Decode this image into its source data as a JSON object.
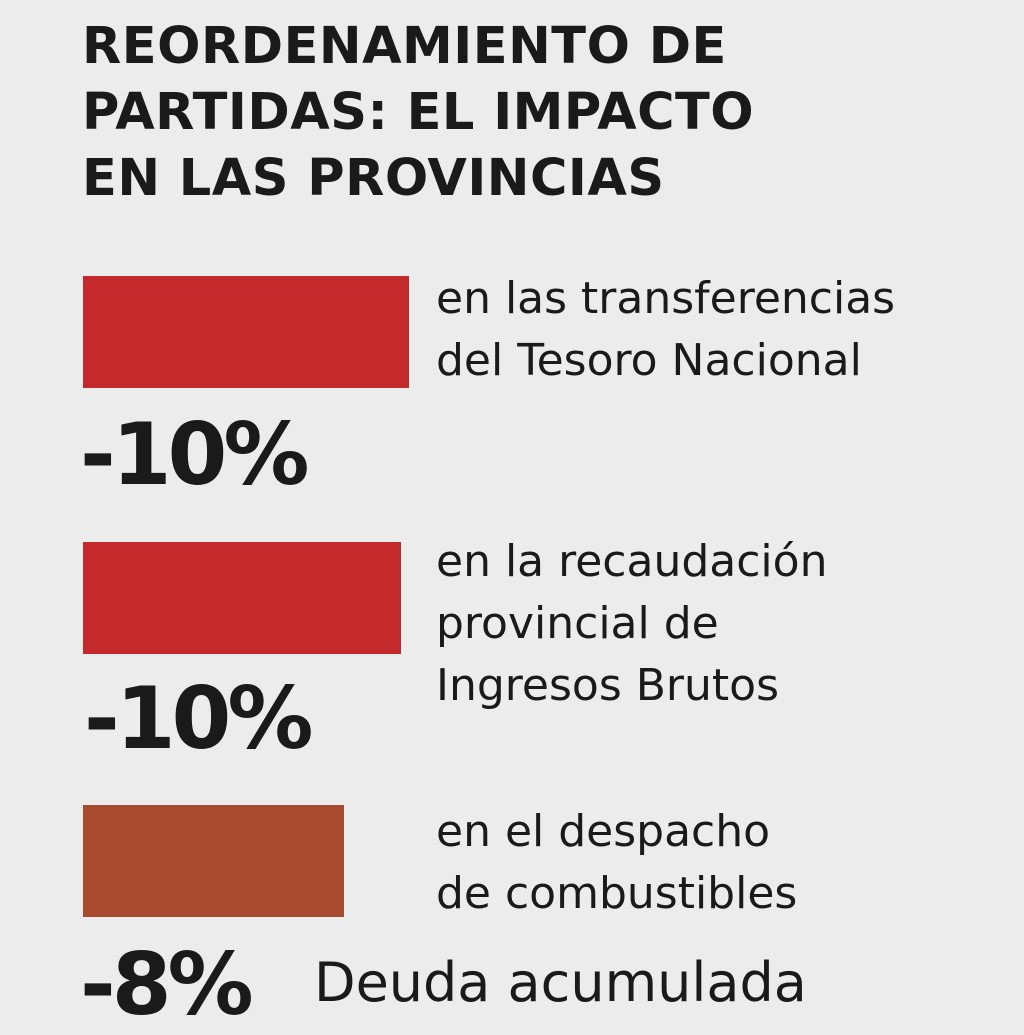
{
  "chart_data": {
    "type": "bar",
    "title_lines": [
      "REORDENAMIENTO DE",
      "PARTIDAS: EL IMPACTO",
      "EN LAS PROVINCIAS"
    ],
    "series": [
      {
        "value": -10,
        "value_label": "-10%",
        "description_lines": [
          "en las transferencias",
          "del Tesoro Nacional"
        ],
        "color": "#c4292b"
      },
      {
        "value": -10,
        "value_label": "-10%",
        "description_lines": [
          "en la recaudación",
          "provincial de",
          "Ingresos Brutos"
        ],
        "color": "#c4292b"
      },
      {
        "value": -8,
        "value_label": "-8%",
        "description_lines": [
          "en el despacho",
          "de combustibles"
        ],
        "color": "#a84a2e"
      }
    ],
    "footer_label": "Deuda acumulada"
  }
}
